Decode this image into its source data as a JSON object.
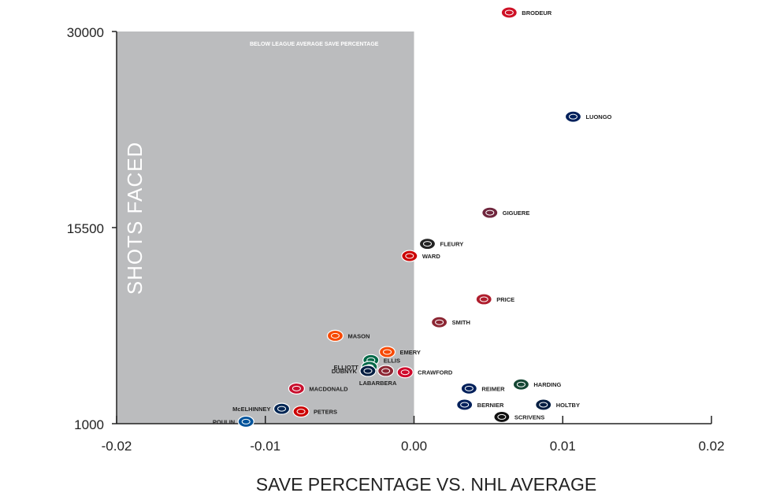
{
  "chart_data": {
    "type": "scatter",
    "xlabel": "SAVE PERCENTAGE VS. NHL AVERAGE",
    "ylabel": "SHOTS FACED",
    "xlim": [
      -0.02,
      0.02
    ],
    "ylim": [
      1000,
      30000
    ],
    "x_ticks": [
      {
        "value": -0.02,
        "label": "-0.02"
      },
      {
        "value": -0.01,
        "label": "-0.01"
      },
      {
        "value": 0.0,
        "label": "0.00"
      },
      {
        "value": 0.01,
        "label": "0.01"
      },
      {
        "value": 0.02,
        "label": "0.02"
      }
    ],
    "y_ticks": [
      {
        "value": 1000,
        "label": "1000"
      },
      {
        "value": 15500,
        "label": "15500"
      },
      {
        "value": 30000,
        "label": "30000"
      }
    ],
    "shaded_region": {
      "x": [
        -0.02,
        0.0
      ],
      "label": "BELOW LEAGUE AVERAGE SAVE PERCENTAGE",
      "color": "#bbbcbe"
    },
    "grid": false,
    "legend": "none",
    "points": [
      {
        "label": "BRODEUR",
        "x": 0.0064,
        "y": 31400,
        "color": "#ce1126",
        "label_side": "right"
      },
      {
        "label": "LUONGO",
        "x": 0.0107,
        "y": 23700,
        "color": "#00205b",
        "label_side": "right"
      },
      {
        "label": "GIGUERE",
        "x": 0.0051,
        "y": 16600,
        "color": "#6f263d",
        "label_side": "right"
      },
      {
        "label": "FLEURY",
        "x": 0.0009,
        "y": 14300,
        "color": "#222222",
        "label_side": "right"
      },
      {
        "label": "WARD",
        "x": -0.0003,
        "y": 13400,
        "color": "#cc0000",
        "label_side": "right"
      },
      {
        "label": "PRICE",
        "x": 0.0047,
        "y": 10200,
        "color": "#af1e2d",
        "label_side": "right"
      },
      {
        "label": "SMITH",
        "x": 0.0017,
        "y": 8500,
        "color": "#8c2633",
        "label_side": "right"
      },
      {
        "label": "MASON",
        "x": -0.0053,
        "y": 7500,
        "color": "#f74902",
        "label_side": "right"
      },
      {
        "label": "EMERY",
        "x": -0.0018,
        "y": 6300,
        "color": "#f74902",
        "label_side": "right"
      },
      {
        "label": "ELLIS",
        "x": -0.0029,
        "y": 5700,
        "color": "#006847",
        "label_side": "right"
      },
      {
        "label": "ELLIOTT",
        "x": -0.003,
        "y": 5200,
        "color": "#006847",
        "label_side": "left"
      },
      {
        "label": "DUBNYK",
        "x": -0.0031,
        "y": 4900,
        "color": "#041e42",
        "label_side": "left"
      },
      {
        "label": "CRAWFORD",
        "x": -0.0006,
        "y": 4800,
        "color": "#cf0a2c",
        "label_side": "right"
      },
      {
        "label": "LABARBERA",
        "x": -0.0019,
        "y": 4900,
        "color": "#8c2633",
        "label_side": "below"
      },
      {
        "label": "MACDONALD",
        "x": -0.0079,
        "y": 3600,
        "color": "#c8102e",
        "label_side": "right"
      },
      {
        "label": "HARDING",
        "x": 0.0072,
        "y": 3900,
        "color": "#154734",
        "label_side": "right"
      },
      {
        "label": "REIMER",
        "x": 0.0037,
        "y": 3600,
        "color": "#00205b",
        "label_side": "right"
      },
      {
        "label": "BERNIER",
        "x": 0.0034,
        "y": 2400,
        "color": "#00205b",
        "label_side": "right"
      },
      {
        "label": "HOLTBY",
        "x": 0.0087,
        "y": 2400,
        "color": "#041e42",
        "label_side": "right"
      },
      {
        "label": "McELHINNEY",
        "x": -0.0089,
        "y": 2100,
        "color": "#002654",
        "label_side": "left"
      },
      {
        "label": "PETERS",
        "x": -0.0076,
        "y": 1900,
        "color": "#cc0000",
        "label_side": "right"
      },
      {
        "label": "SCRIVENS",
        "x": 0.0059,
        "y": 1500,
        "color": "#111111",
        "label_side": "right"
      },
      {
        "label": "POULIN",
        "x": -0.0113,
        "y": 1150,
        "color": "#00539b",
        "label_side": "left"
      }
    ]
  }
}
